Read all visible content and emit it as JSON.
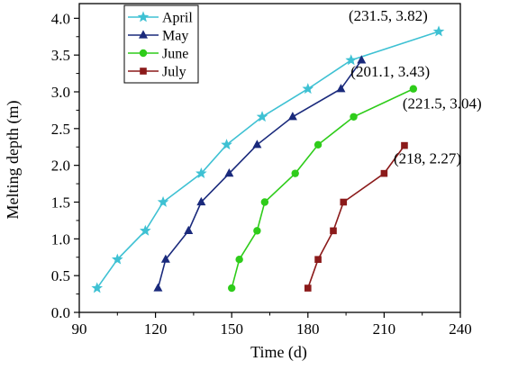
{
  "chart_data": {
    "type": "line",
    "title": "",
    "xlabel": "Time (d)",
    "ylabel": "Melting depth (m)",
    "xlim": [
      90,
      240
    ],
    "ylim": [
      0.0,
      4.2
    ],
    "xticks": [
      90,
      120,
      150,
      180,
      210,
      240
    ],
    "xtick_labels": [
      "90",
      "120",
      "150",
      "180",
      "210",
      "240"
    ],
    "yticks": [
      0.0,
      0.5,
      1.0,
      1.5,
      2.0,
      2.5,
      3.0,
      3.5,
      4.0
    ],
    "ytick_labels": [
      "0.0",
      "0.5",
      "1.0",
      "1.5",
      "2.0",
      "2.5",
      "3.0",
      "3.5",
      "4.0"
    ],
    "grid": false,
    "legend_position": "top-left",
    "series": [
      {
        "name": "April",
        "color": "#3ec1d3",
        "marker": "star",
        "x": [
          97,
          105,
          116,
          123,
          138,
          148,
          162,
          180,
          197,
          231.5
        ],
        "y": [
          0.33,
          0.72,
          1.11,
          1.5,
          1.89,
          2.28,
          2.66,
          3.04,
          3.43,
          3.82
        ]
      },
      {
        "name": "May",
        "color": "#1a2a7c",
        "marker": "triangle",
        "x": [
          121,
          124,
          133,
          138,
          149,
          160,
          174,
          193,
          201.1
        ],
        "y": [
          0.33,
          0.72,
          1.11,
          1.5,
          1.89,
          2.28,
          2.66,
          3.04,
          3.43
        ]
      },
      {
        "name": "June",
        "color": "#2ecc1a",
        "marker": "circle",
        "x": [
          150,
          153,
          160,
          163,
          175,
          184,
          198,
          221.5
        ],
        "y": [
          0.33,
          0.72,
          1.11,
          1.5,
          1.89,
          2.28,
          2.66,
          3.04
        ]
      },
      {
        "name": "July",
        "color": "#8b1a1a",
        "marker": "square",
        "x": [
          180,
          184,
          190,
          194,
          210,
          218
        ],
        "y": [
          0.33,
          0.72,
          1.11,
          1.5,
          1.89,
          2.27
        ]
      }
    ],
    "annotations": [
      {
        "text": "(231.5,   3.82)",
        "x": 231.5,
        "y": 3.82
      },
      {
        "text": "(201.1,   3.43)",
        "x": 201.1,
        "y": 3.43
      },
      {
        "text": "(221.5,   3.04)",
        "x": 221.5,
        "y": 3.04
      },
      {
        "text": "(218,   2.27)",
        "x": 218,
        "y": 2.27
      }
    ]
  }
}
